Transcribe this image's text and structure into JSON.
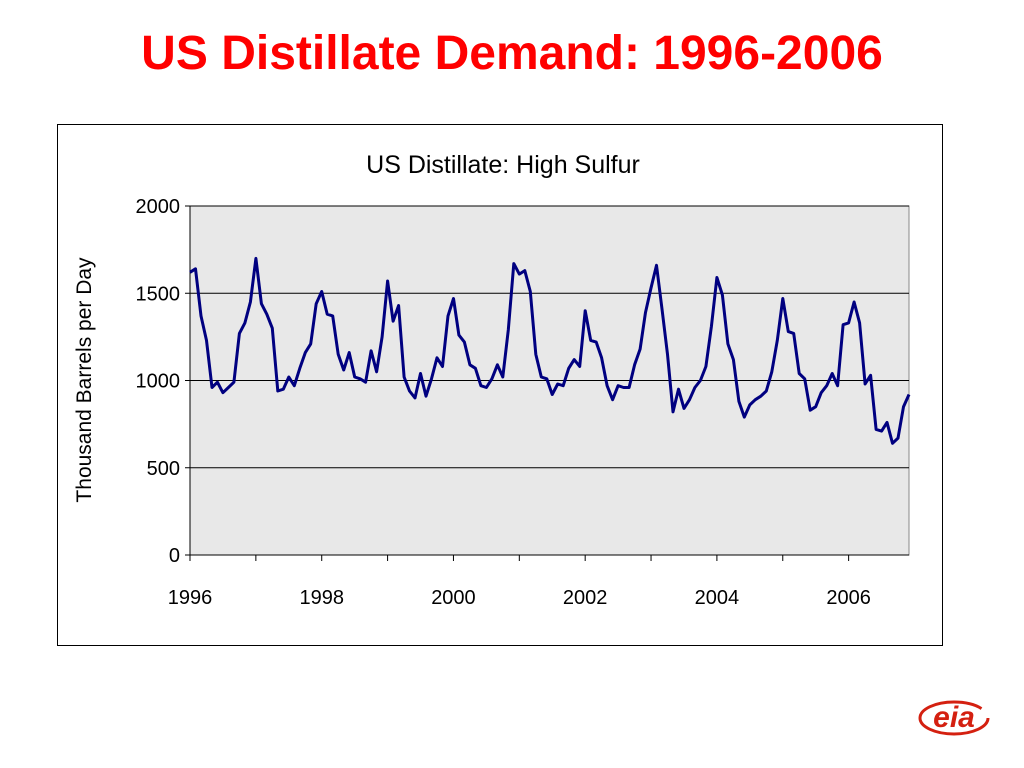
{
  "slide": {
    "title": "US Distillate Demand:  1996-2006"
  },
  "logo": {
    "text": "eia",
    "color": "#d42010"
  },
  "colors": {
    "title": "#ff0000",
    "series": "#000080",
    "plot_background": "#e8e8e8"
  },
  "chart_data": {
    "type": "line",
    "title": "US Distillate:  High Sulfur",
    "xlabel": "",
    "ylabel": "Thousand Barrels per Day",
    "xlim": [
      "1996-01",
      "2006-12"
    ],
    "ylim": [
      0,
      2000
    ],
    "y_ticks": [
      0,
      500,
      1000,
      1500,
      2000
    ],
    "x_ticks": [
      "1996",
      "1998",
      "2000",
      "2002",
      "2004",
      "2006"
    ],
    "grid": "horizontal",
    "legend": "none",
    "x_start": "1996-01",
    "x_interval": "monthly",
    "series": [
      {
        "values": [
          1620,
          1640,
          1370,
          1230,
          960,
          990,
          930,
          960,
          990,
          1270,
          1330,
          1450,
          1700,
          1440,
          1380,
          1300,
          940,
          950,
          1020,
          970,
          1070,
          1160,
          1210,
          1440,
          1510,
          1380,
          1370,
          1150,
          1060,
          1160,
          1020,
          1010,
          990,
          1170,
          1050,
          1250,
          1570,
          1340,
          1430,
          1020,
          940,
          900,
          1040,
          910,
          1010,
          1130,
          1080,
          1370,
          1470,
          1260,
          1220,
          1090,
          1070,
          970,
          960,
          1010,
          1090,
          1020,
          1290,
          1670,
          1610,
          1630,
          1510,
          1150,
          1020,
          1010,
          920,
          980,
          970,
          1070,
          1120,
          1080,
          1400,
          1230,
          1220,
          1130,
          970,
          890,
          970,
          960,
          960,
          1090,
          1180,
          1390,
          1530,
          1660,
          1410,
          1150,
          820,
          950,
          840,
          890,
          960,
          1000,
          1080,
          1310,
          1590,
          1490,
          1210,
          1120,
          880,
          790,
          860,
          890,
          910,
          940,
          1050,
          1230,
          1470,
          1280,
          1270,
          1040,
          1010,
          830,
          850,
          930,
          970,
          1040,
          970,
          1320,
          1330,
          1450,
          1330,
          980,
          1030,
          720,
          710,
          760,
          640,
          670,
          850,
          920
        ]
      }
    ]
  }
}
